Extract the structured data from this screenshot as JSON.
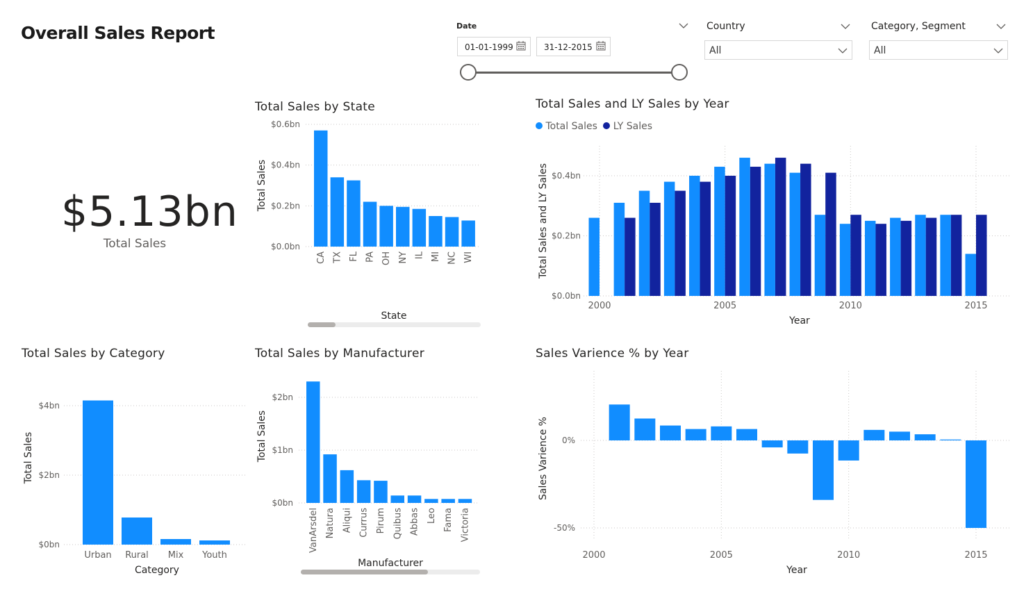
{
  "report": {
    "title": "Overall Sales Report"
  },
  "filters": {
    "date": {
      "label": "Date",
      "start": "01-01-1999",
      "end": "31-12-2015"
    },
    "country": {
      "label": "Country",
      "value": "All"
    },
    "category_segment": {
      "label": "Category, Segment",
      "value": "All"
    }
  },
  "kpi": {
    "value": "$5.13bn",
    "label": "Total Sales"
  },
  "colors": {
    "total_sales": "#118DFF",
    "ly_sales": "#12239E",
    "gridline": "#c8c6c4",
    "axis_text": "#605e5c"
  },
  "charts": {
    "by_state": {
      "title": "Total Sales by State",
      "xlabel": "State",
      "ylabel": "Total Sales",
      "ticks": [
        "$0.0bn",
        "$0.2bn",
        "$0.4bn",
        "$0.6bn"
      ],
      "categories": [
        "CA",
        "TX",
        "FL",
        "PA",
        "OH",
        "NY",
        "IL",
        "MI",
        "NC",
        "WI"
      ]
    },
    "by_year": {
      "title": "Total Sales and LY Sales by Year",
      "xlabel": "Year",
      "ylabel": "Total Sales and LY Sales",
      "ticks": [
        "$0.0bn",
        "$0.2bn",
        "$0.4bn"
      ],
      "xticks": [
        "2000",
        "2005",
        "2010",
        "2015"
      ],
      "legend": [
        "Total Sales",
        "LY Sales"
      ]
    },
    "by_category": {
      "title": "Total Sales by Category",
      "xlabel": "Category",
      "ylabel": "Total Sales",
      "ticks": [
        "$0bn",
        "$2bn",
        "$4bn"
      ],
      "categories": [
        "Urban",
        "Rural",
        "Mix",
        "Youth"
      ]
    },
    "by_manufacturer": {
      "title": "Total Sales by Manufacturer",
      "xlabel": "Manufacturer",
      "ylabel": "Total Sales",
      "ticks": [
        "$0bn",
        "$1bn",
        "$2bn"
      ],
      "categories": [
        "VanArsdel",
        "Natura",
        "Aliqui",
        "Currus",
        "Pirum",
        "Quibus",
        "Abbas",
        "Leo",
        "Fama",
        "Victoria"
      ]
    },
    "variance": {
      "title": "Sales Varience % by Year",
      "xlabel": "Year",
      "ylabel": "Sales Varience %",
      "ticks": [
        "-50%",
        "0%"
      ],
      "xticks": [
        "2000",
        "2005",
        "2010",
        "2015"
      ]
    }
  },
  "chart_data": [
    {
      "type": "bar",
      "title": "Total Sales by State",
      "xlabel": "State",
      "ylabel": "Total Sales",
      "categories": [
        "CA",
        "TX",
        "FL",
        "PA",
        "OH",
        "NY",
        "IL",
        "MI",
        "NC",
        "WI"
      ],
      "values": [
        0.57,
        0.34,
        0.325,
        0.22,
        0.2,
        0.195,
        0.185,
        0.15,
        0.145,
        0.128
      ],
      "ylim": [
        0,
        0.6
      ],
      "unit": "$bn",
      "grid": true
    },
    {
      "type": "bar",
      "title": "Total Sales and LY Sales by Year",
      "xlabel": "Year",
      "ylabel": "Total Sales and LY Sales",
      "x": [
        2000,
        2001,
        2002,
        2003,
        2004,
        2005,
        2006,
        2007,
        2008,
        2009,
        2010,
        2011,
        2012,
        2013,
        2014,
        2015
      ],
      "series": [
        {
          "name": "Total Sales",
          "values": [
            0.26,
            0.31,
            0.35,
            0.38,
            0.4,
            0.43,
            0.46,
            0.44,
            0.41,
            0.27,
            0.24,
            0.25,
            0.26,
            0.27,
            0.27,
            0.14
          ]
        },
        {
          "name": "LY Sales",
          "values": [
            null,
            0.26,
            0.31,
            0.35,
            0.38,
            0.4,
            0.43,
            0.46,
            0.44,
            0.41,
            0.27,
            0.24,
            0.25,
            0.26,
            0.27,
            0.27
          ]
        }
      ],
      "ylim": [
        0,
        0.5
      ],
      "unit": "$bn",
      "legend": "top-left",
      "grid": true
    },
    {
      "type": "bar",
      "title": "Total Sales by Category",
      "xlabel": "Category",
      "ylabel": "Total Sales",
      "categories": [
        "Urban",
        "Rural",
        "Mix",
        "Youth"
      ],
      "values": [
        4.15,
        0.78,
        0.16,
        0.12
      ],
      "ylim": [
        0,
        4.4
      ],
      "unit": "$bn",
      "grid": true
    },
    {
      "type": "bar",
      "title": "Total Sales by Manufacturer",
      "xlabel": "Manufacturer",
      "ylabel": "Total Sales",
      "categories": [
        "VanArsdel",
        "Natura",
        "Aliqui",
        "Currus",
        "Pirum",
        "Quibus",
        "Abbas",
        "Leo",
        "Fama",
        "Victoria"
      ],
      "values": [
        2.3,
        0.92,
        0.62,
        0.43,
        0.42,
        0.14,
        0.14,
        0.075,
        0.075,
        0.075
      ],
      "ylim": [
        0,
        2.4
      ],
      "unit": "$bn",
      "grid": true
    },
    {
      "type": "bar",
      "title": "Sales Varience % by Year",
      "xlabel": "Year",
      "ylabel": "Sales Varience %",
      "x": [
        2001,
        2002,
        2003,
        2004,
        2005,
        2006,
        2007,
        2008,
        2009,
        2010,
        2011,
        2012,
        2013,
        2014,
        2015
      ],
      "values": [
        20.5,
        12.5,
        8.5,
        6.5,
        8,
        6.5,
        -4,
        -7.5,
        -34,
        -11.5,
        6,
        5,
        3.5,
        0.5,
        -50
      ],
      "ylim": [
        -50,
        20
      ],
      "unit": "%",
      "grid": true
    }
  ]
}
